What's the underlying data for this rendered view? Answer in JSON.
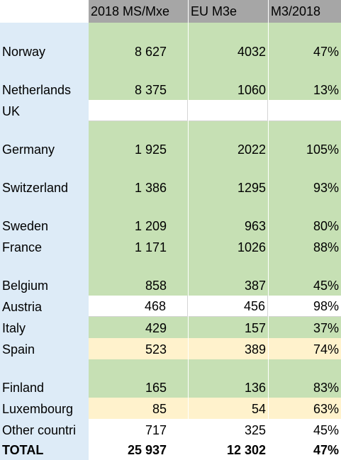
{
  "header": {
    "col1": "2018 MS/Mxe",
    "col2": "EU M3e",
    "col3": "M3/2018"
  },
  "rows": [
    {
      "country": "Norway",
      "ms": "8 627",
      "eu": "4032",
      "ratio": "47%"
    },
    {
      "country": "Netherlands",
      "ms": "8 375",
      "eu": "1060",
      "ratio": "13%"
    },
    {
      "country": "UK",
      "ms": "",
      "eu": "",
      "ratio": ""
    },
    {
      "country": "Germany",
      "ms": "1 925",
      "eu": "2022",
      "ratio": "105%"
    },
    {
      "country": "Switzerland",
      "ms": "1 386",
      "eu": "1295",
      "ratio": "93%"
    },
    {
      "country": "Sweden",
      "ms": "1 209",
      "eu": "963",
      "ratio": "80%"
    },
    {
      "country": "France",
      "ms": "1 171",
      "eu": "1026",
      "ratio": "88%"
    },
    {
      "country": "Belgium",
      "ms": "858",
      "eu": "387",
      "ratio": "45%"
    },
    {
      "country": "Austria",
      "ms": "468",
      "eu": "456",
      "ratio": "98%"
    },
    {
      "country": "Italy",
      "ms": "429",
      "eu": "157",
      "ratio": "37%"
    },
    {
      "country": "Spain",
      "ms": "523",
      "eu": "389",
      "ratio": "74%"
    },
    {
      "country": "Finland",
      "ms": "165",
      "eu": "136",
      "ratio": "83%"
    },
    {
      "country": "Luxembourg",
      "ms": "85",
      "eu": "54",
      "ratio": "63%"
    },
    {
      "country": "Other countri",
      "ms": "717",
      "eu": "325",
      "ratio": "45%"
    }
  ],
  "total": {
    "label": "TOTAL",
    "ms": "25 937",
    "eu": "12 302",
    "ratio": "47%"
  },
  "colors": {
    "green": "#c6e0b4",
    "yellow": "#fff2cc",
    "blue": "#ddebf7",
    "header_gray": "#a6a6a6"
  }
}
